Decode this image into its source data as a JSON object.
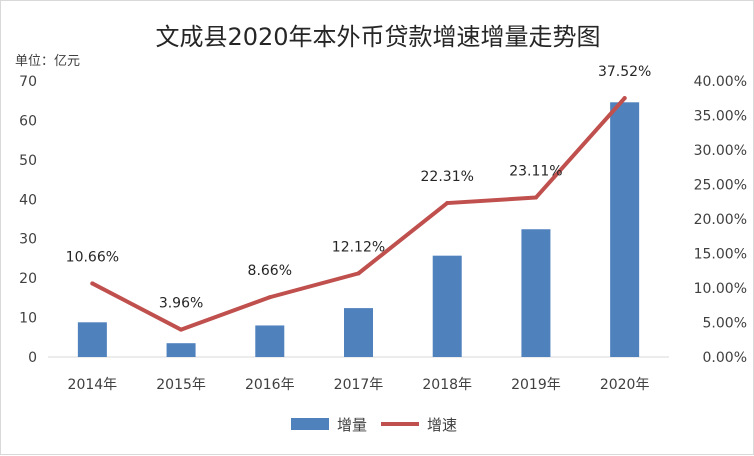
{
  "chart_data": {
    "type": "bar+line",
    "title": "文成县2020年本外币贷款增速增量走势图",
    "unit_label": "单位：亿元",
    "categories": [
      "2014年",
      "2015年",
      "2016年",
      "2017年",
      "2018年",
      "2019年",
      "2020年"
    ],
    "series": [
      {
        "name": "增量",
        "type": "bar",
        "axis": "left",
        "color": "#4f81bd",
        "values": [
          8.8,
          3.5,
          8.0,
          12.4,
          25.7,
          32.4,
          64.6
        ]
      },
      {
        "name": "增速",
        "type": "line",
        "axis": "right",
        "color": "#c0504d",
        "values": [
          10.66,
          3.96,
          8.66,
          12.12,
          22.31,
          23.11,
          37.52
        ],
        "labels": [
          "10.66%",
          "3.96%",
          "8.66%",
          "12.12%",
          "22.31%",
          "23.11%",
          "37.52%"
        ]
      }
    ],
    "y_left": {
      "min": 0,
      "max": 70,
      "step": 10,
      "ticks": [
        "0",
        "10",
        "20",
        "30",
        "40",
        "50",
        "60",
        "70"
      ]
    },
    "y_right": {
      "min": 0,
      "max": 40,
      "step": 5,
      "ticks": [
        "0.00%",
        "5.00%",
        "10.00%",
        "15.00%",
        "20.00%",
        "25.00%",
        "30.00%",
        "35.00%",
        "40.00%"
      ]
    },
    "grid": false,
    "legend_position": "bottom"
  }
}
